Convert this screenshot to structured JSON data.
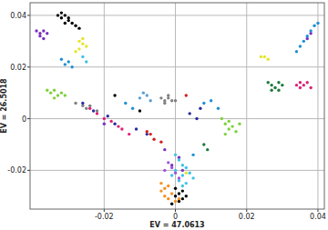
{
  "chart_data": {
    "type": "scatter",
    "xlabel": "EV = 47.0613",
    "ylabel": "EV = 26.5018",
    "xlim": [
      -0.0408,
      0.0418
    ],
    "ylim": [
      -0.035,
      0.0449
    ],
    "xticks": [
      -0.02,
      0,
      0.02,
      0.04
    ],
    "yticks": [
      -0.02,
      0,
      0.02,
      0.04
    ],
    "grid": true,
    "marker": "circle",
    "series": [
      {
        "color": "#000000",
        "x": [
          -0.033,
          -0.032,
          -0.031,
          -0.03,
          -0.029,
          -0.031,
          -0.032,
          -0.028,
          -0.03,
          -0.027,
          0.0,
          0.001,
          0.002,
          -0.001,
          0.002,
          0.001,
          0.003,
          0.0,
          -0.017,
          -0.01
        ],
        "values": [
          0.04,
          0.039,
          0.04,
          0.038,
          0.037,
          0.037,
          0.041,
          0.036,
          0.039,
          0.035,
          -0.03,
          -0.032,
          -0.031,
          -0.033,
          -0.028,
          -0.029,
          -0.03,
          -0.027,
          0.009,
          0.003
        ]
      },
      {
        "color": "#7b2fbf",
        "x": [
          -0.039,
          -0.038,
          -0.037,
          -0.038,
          -0.036,
          -0.037,
          -0.02,
          -0.003,
          0.001,
          0.002,
          -0.001,
          0.037,
          0.038
        ],
        "values": [
          0.034,
          0.033,
          0.034,
          0.032,
          0.033,
          0.031,
          -0.002,
          -0.012,
          -0.015,
          -0.02,
          -0.018,
          0.031,
          0.033
        ]
      },
      {
        "color": "#e5e52a",
        "x": [
          -0.027,
          -0.026,
          -0.025,
          -0.027,
          -0.026,
          -0.028,
          0.025,
          0.026,
          0.024,
          0.003
        ],
        "values": [
          0.03,
          0.029,
          0.028,
          0.027,
          0.031,
          0.026,
          0.024,
          0.023,
          0.024,
          -0.021
        ]
      },
      {
        "color": "#1e90d6",
        "x": [
          -0.032,
          -0.031,
          -0.03,
          -0.029,
          0.036,
          0.038,
          0.039,
          0.04,
          0.035,
          0.034,
          0.037,
          -0.014,
          -0.012,
          0.008,
          0.01,
          0.012,
          0.005
        ],
        "values": [
          0.023,
          0.021,
          0.022,
          0.02,
          0.03,
          0.034,
          0.036,
          0.037,
          0.028,
          0.026,
          0.032,
          0.006,
          0.004,
          0.006,
          0.007,
          0.004,
          -0.014
        ]
      },
      {
        "color": "#7fd13b",
        "x": [
          -0.036,
          -0.035,
          -0.034,
          -0.033,
          -0.032,
          -0.034,
          -0.031,
          0.013,
          0.014,
          0.015,
          0.016,
          0.017,
          0.015,
          0.014,
          0.018
        ],
        "values": [
          0.011,
          0.01,
          0.011,
          0.009,
          0.01,
          0.008,
          0.009,
          0.0,
          -0.002,
          -0.001,
          -0.003,
          -0.005,
          -0.004,
          -0.006,
          -0.002
        ]
      },
      {
        "color": "#808080",
        "x": [
          -0.028,
          -0.026,
          -0.025,
          -0.024,
          -0.022,
          -0.004,
          -0.003,
          -0.002,
          -0.001,
          -0.003,
          0.0,
          -0.002
        ],
        "values": [
          0.006,
          0.005,
          0.004,
          0.005,
          0.003,
          0.008,
          0.007,
          0.008,
          0.007,
          0.006,
          0.007,
          0.009
        ]
      },
      {
        "color": "#e0207a",
        "x": [
          -0.024,
          -0.022,
          -0.02,
          -0.018,
          -0.016,
          -0.015,
          -0.013,
          0.034,
          0.035,
          0.036,
          0.037,
          0.035,
          0.038
        ],
        "values": [
          0.004,
          0.002,
          0.0,
          -0.001,
          -0.003,
          -0.004,
          -0.006,
          0.013,
          0.012,
          0.013,
          0.014,
          0.014,
          0.012
        ]
      },
      {
        "color": "#2a2a9e",
        "x": [
          -0.026,
          -0.023,
          -0.019,
          -0.017,
          -0.011,
          -0.008,
          0.004,
          0.007,
          0.006
        ],
        "values": [
          0.006,
          0.003,
          0.001,
          -0.002,
          -0.004,
          -0.006,
          0.002,
          0.004,
          0.0
        ]
      },
      {
        "color": "#f5901e",
        "x": [
          -0.004,
          -0.003,
          -0.002,
          -0.001,
          -0.003,
          0.0,
          -0.002,
          0.001,
          -0.004
        ],
        "values": [
          -0.028,
          -0.03,
          -0.031,
          -0.029,
          -0.027,
          -0.032,
          -0.026,
          -0.031,
          -0.025
        ]
      },
      {
        "color": "#3fc1e6",
        "x": [
          0.0,
          0.001,
          0.002,
          0.003,
          0.0,
          0.002,
          0.004,
          0.001,
          0.003,
          0.005,
          -0.001,
          0.002,
          -0.026,
          -0.025
        ],
        "values": [
          -0.014,
          -0.016,
          -0.018,
          -0.019,
          -0.02,
          -0.022,
          -0.021,
          -0.024,
          -0.025,
          -0.023,
          -0.022,
          -0.026,
          0.024,
          0.022
        ]
      },
      {
        "color": "#1a7a3a",
        "x": [
          0.026,
          0.027,
          0.028,
          0.029,
          0.03,
          0.027,
          0.029,
          0.008,
          0.009
        ],
        "values": [
          0.014,
          0.013,
          0.012,
          0.014,
          0.013,
          0.011,
          0.011,
          -0.01,
          -0.012
        ]
      },
      {
        "color": "#a050e0",
        "x": [
          -0.002,
          -0.001,
          0.0,
          -0.003,
          0.001
        ],
        "values": [
          -0.017,
          -0.019,
          -0.021,
          -0.02,
          -0.023
        ]
      },
      {
        "color": "#d02020",
        "x": [
          -0.008,
          -0.007,
          -0.006,
          -0.004,
          0.003
        ],
        "values": [
          -0.005,
          -0.006,
          -0.008,
          -0.009,
          0.009
        ]
      },
      {
        "color": "#5a9fd4",
        "x": [
          -0.01,
          -0.008,
          -0.007,
          -0.009
        ],
        "values": [
          0.008,
          0.009,
          0.007,
          0.01
        ]
      }
    ]
  }
}
